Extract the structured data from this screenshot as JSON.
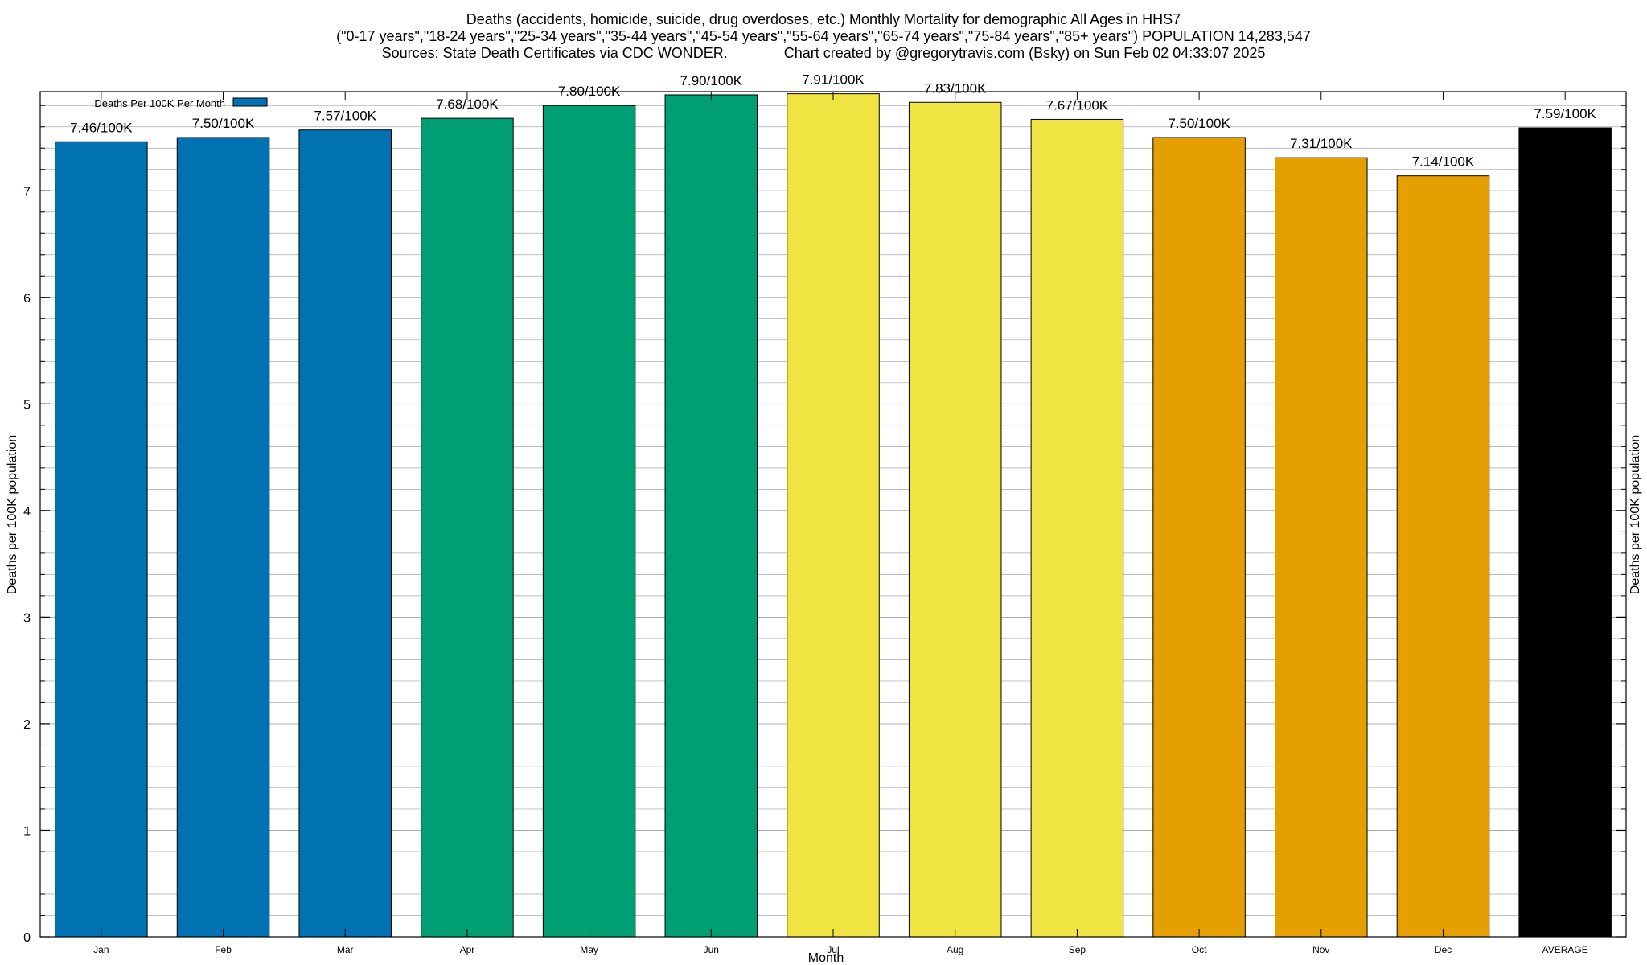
{
  "chart_data": {
    "type": "bar",
    "title_lines": [
      "Deaths (accidents, homicide, suicide, drug overdoses, etc.) Monthly Mortality for demographic All Ages in HHS7",
      "(\"0-17 years\",\"18-24 years\",\"25-34 years\",\"35-44 years\",\"45-54 years\",\"55-64 years\",\"65-74 years\",\"75-84 years\",\"85+ years\") POPULATION 14,283,547",
      "Sources: State Death Certificates via CDC WONDER.              Chart created by @gregorytravis.com (Bsky) on Sun Feb 02 04:33:07 2025"
    ],
    "xlabel": "Month",
    "ylabel": "Deaths per 100K population",
    "ylabel_right": "Deaths per 100K population",
    "ylim": [
      0,
      7.93
    ],
    "yticks": [
      0,
      1,
      2,
      3,
      4,
      5,
      6,
      7
    ],
    "minor_tick_step": 0.2,
    "grid": true,
    "legend": {
      "position": "top-left",
      "entries": [
        {
          "label": "Deaths Per 100K Per Month",
          "color": "#0072b2"
        }
      ]
    },
    "categories": [
      "Jan",
      "Feb",
      "Mar",
      "Apr",
      "May",
      "Jun",
      "Jul",
      "Aug",
      "Sep",
      "Oct",
      "Nov",
      "Dec",
      "AVERAGE"
    ],
    "values": [
      7.46,
      7.5,
      7.57,
      7.68,
      7.8,
      7.9,
      7.91,
      7.83,
      7.67,
      7.5,
      7.31,
      7.14,
      7.59
    ],
    "data_labels": [
      "7.46/100K",
      "7.50/100K",
      "7.57/100K",
      "7.68/100K",
      "7.80/100K",
      "7.90/100K",
      "7.91/100K",
      "7.83/100K",
      "7.67/100K",
      "7.50/100K",
      "7.31/100K",
      "7.14/100K",
      "7.59/100K"
    ],
    "colors": [
      "#0072b2",
      "#0072b2",
      "#0072b2",
      "#009e73",
      "#009e73",
      "#009e73",
      "#f0e442",
      "#f0e442",
      "#f0e442",
      "#e69f00",
      "#e69f00",
      "#e69f00",
      "#000000"
    ]
  }
}
